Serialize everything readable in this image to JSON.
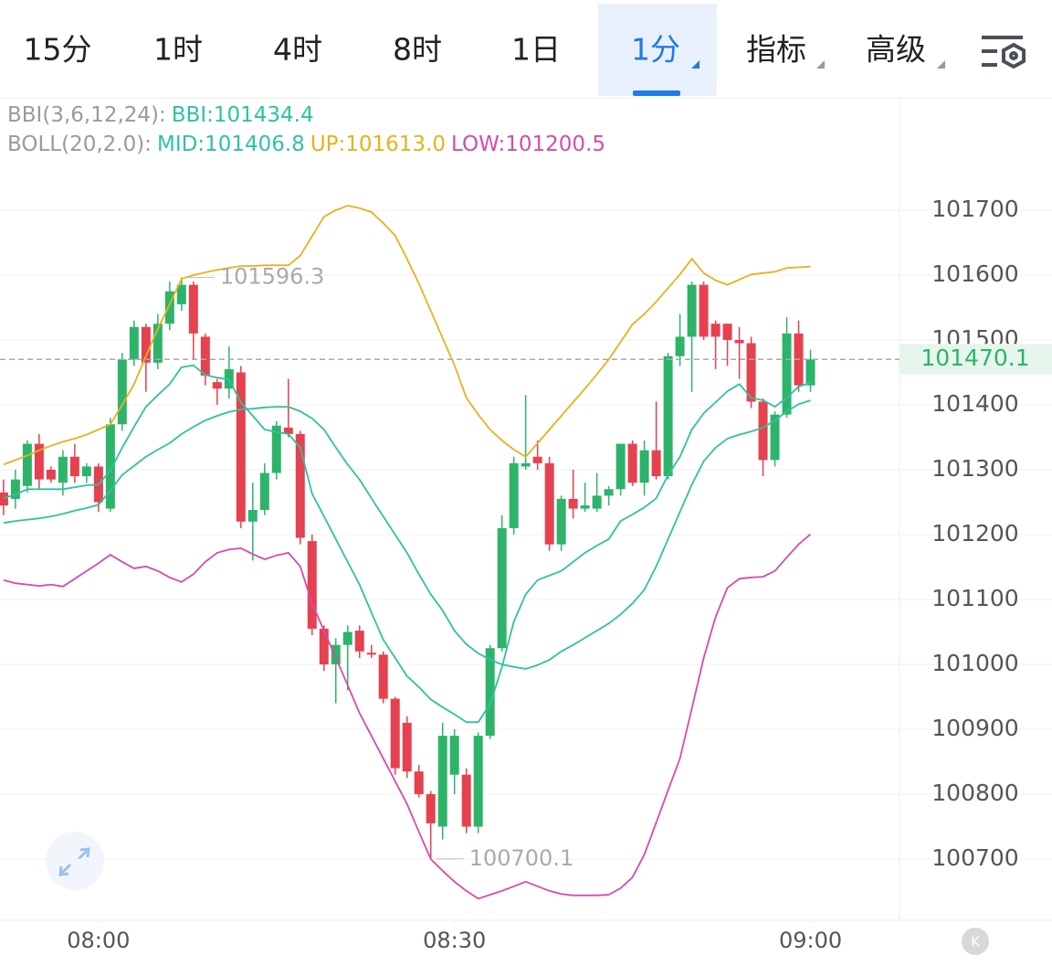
{
  "toolbar": {
    "tabs": [
      "15分",
      "1时",
      "4时",
      "8时",
      "1日",
      "1分",
      "指标",
      "高级"
    ],
    "active": 5
  },
  "chart_data": {
    "type": "candlestick",
    "legend": [
      [
        {
          "text": "BBI(3,6,12,24):",
          "color": "#9a9a9a"
        },
        {
          "text": "BBI:101434.4",
          "color": "#2fc2a0"
        }
      ],
      [
        {
          "text": "BOLL(20,2.0):",
          "color": "#9a9a9a"
        },
        {
          "text": "MID:101406.8",
          "color": "#2fc2a0"
        },
        {
          "text": "UP:101613.0",
          "color": "#e9b11c"
        },
        {
          "text": "LOW:101200.5",
          "color": "#d84aaa"
        }
      ]
    ],
    "up_color": "#2db46a",
    "down_color": "#e5414f",
    "x": [
      472,
      473,
      474,
      475,
      476,
      477,
      478,
      479,
      480,
      481,
      482,
      483,
      484,
      485,
      486,
      487,
      488,
      489,
      490,
      491,
      492,
      493,
      494,
      495,
      496,
      497,
      498,
      499,
      500,
      501,
      502,
      503,
      504,
      505,
      506,
      507,
      508,
      509,
      510,
      511,
      512,
      513,
      514,
      515,
      516,
      517,
      518,
      519,
      520,
      521,
      522,
      523,
      524,
      525,
      526,
      527,
      528,
      529,
      530,
      531,
      532,
      533,
      534,
      535,
      536,
      537,
      538,
      539,
      540
    ],
    "open": [
      101265,
      101255,
      101275,
      101340,
      101300,
      101280,
      101320,
      101290,
      101305,
      101240,
      101370,
      101470,
      101520,
      101465,
      101525,
      101555,
      101585,
      101505,
      101435,
      101425,
      101450,
      101220,
      101238,
      101295,
      101365,
      101355,
      101190,
      101055,
      101000,
      101030,
      101052,
      101018,
      101015,
      100947,
      100910,
      100835,
      100800,
      100750,
      100830,
      100830,
      100750,
      100890,
      101025,
      101210,
      101305,
      101320,
      101310,
      101185,
      101255,
      101240,
      101240,
      101260,
      101270,
      101340,
      101280,
      101330,
      101290,
      101475,
      101505,
      101585,
      101525,
      101525,
      101500,
      101495,
      101405,
      101315,
      101385,
      101510,
      101430
    ],
    "high": [
      101285,
      101300,
      101345,
      101355,
      101305,
      101330,
      101340,
      101310,
      101310,
      101380,
      101480,
      101530,
      101525,
      101540,
      101590,
      101596.3,
      101590,
      101510,
      101440,
      101490,
      101460,
      101280,
      101310,
      101375,
      101440,
      101360,
      101200,
      101060,
      101040,
      101060,
      101060,
      101030,
      101020,
      100950,
      100920,
      100845,
      100805,
      100910,
      100900,
      100840,
      100895,
      101030,
      101230,
      101320,
      101415,
      101345,
      101320,
      101260,
      101300,
      101280,
      101295,
      101275,
      101340,
      101345,
      101345,
      101405,
      101480,
      101540,
      101590,
      101590,
      101530,
      101525,
      101520,
      101505,
      101410,
      101390,
      101535,
      101530,
      101485
    ],
    "low": [
      101230,
      101240,
      101265,
      101270,
      101280,
      101260,
      101280,
      101280,
      101235,
      101235,
      101360,
      101460,
      101420,
      101455,
      101515,
      101545,
      101470,
      101430,
      101400,
      101410,
      101210,
      101160,
      101230,
      101285,
      101350,
      101185,
      101045,
      100990,
      100940,
      100960,
      101010,
      101010,
      100940,
      100830,
      100825,
      100795,
      100700.1,
      100730,
      100800,
      100740,
      100740,
      100885,
      101020,
      101200,
      101300,
      101300,
      101175,
      101175,
      101225,
      101235,
      101235,
      101245,
      101260,
      101275,
      101260,
      101285,
      101285,
      101460,
      101420,
      101500,
      101455,
      101460,
      101440,
      101395,
      101290,
      101305,
      101380,
      101420,
      101420
    ],
    "close": [
      101245,
      101285,
      101340,
      101285,
      101285,
      101320,
      101290,
      101305,
      101250,
      101370,
      101470,
      101520,
      101465,
      101525,
      101575,
      101585,
      101510,
      101445,
      101425,
      101455,
      101220,
      101238,
      101295,
      101368,
      101355,
      101195,
      101055,
      101000,
      101030,
      101050,
      101020,
      101015,
      100947,
      100840,
      100835,
      100800,
      100755,
      100890,
      100890,
      100750,
      100890,
      101025,
      101210,
      101310,
      101310,
      101310,
      101185,
      101255,
      101240,
      101245,
      101260,
      101270,
      101340,
      101280,
      101330,
      101290,
      101475,
      101505,
      101585,
      101505,
      101505,
      101500,
      101495,
      101405,
      101315,
      101385,
      101510,
      101430,
      101470.1
    ],
    "series": [
      {
        "name": "BBI",
        "color": "#2fc2a0",
        "values": [
          101256,
          101262,
          101270,
          101270,
          101270,
          101270,
          101273,
          101276,
          101277,
          101299,
          101334,
          101366,
          101397,
          101415,
          101432,
          101458,
          101461,
          101446,
          101442,
          101439,
          101404,
          101383,
          101362,
          101358,
          101355,
          101334,
          101263,
          101228,
          101193,
          101158,
          101123,
          101080,
          101038,
          101010,
          100982,
          100965,
          100946,
          100934,
          100923,
          100911,
          100911,
          100939,
          100996,
          101066,
          101108,
          101130,
          101137,
          101144,
          101158,
          101172,
          101183,
          101193,
          101221,
          101231,
          101242,
          101256,
          101292,
          101320,
          101362,
          101387,
          101404,
          101421,
          101432,
          101411,
          101407,
          101397,
          101411,
          101428,
          101434.4
        ]
      },
      {
        "name": "MID",
        "color": "#2fc2a0",
        "values": [
          101218,
          101221,
          101223,
          101225,
          101228,
          101232,
          101237,
          101241,
          101246,
          101268,
          101292,
          101306,
          101320,
          101331,
          101341,
          101355,
          101366,
          101376,
          101383,
          101389,
          101393,
          101394,
          101396,
          101397,
          101397,
          101390,
          101379,
          101362,
          101334,
          101308,
          101285,
          101256,
          101228,
          101200,
          101172,
          101139,
          101108,
          101083,
          101052,
          101031,
          101017,
          101007,
          101000,
          100996,
          100993,
          100999,
          101007,
          101020,
          101030,
          101041,
          101052,
          101063,
          101077,
          101094,
          101115,
          101151,
          101193,
          101235,
          101277,
          101313,
          101334,
          101348,
          101354,
          101359,
          101365,
          101376,
          101390,
          101401,
          101406.8
        ]
      },
      {
        "name": "UP",
        "color": "#e9b11c",
        "values": [
          101308,
          101315,
          101322,
          101330,
          101337,
          101343,
          101348,
          101354,
          101362,
          101370,
          101400,
          101432,
          101475,
          101517,
          101555,
          101594,
          101600,
          101604,
          101608,
          101611,
          101614,
          101614,
          101615,
          101615,
          101615,
          101630,
          101660,
          101690,
          101700,
          101707,
          101703,
          101697,
          101680,
          101661,
          101625,
          101587,
          101545,
          101503,
          101461,
          101411,
          101385,
          101362,
          101345,
          101331,
          101320,
          101341,
          101362,
          101383,
          101404,
          101425,
          101447,
          101470,
          101497,
          101524,
          101540,
          101559,
          101580,
          101601,
          101625,
          101603,
          101592,
          101585,
          101593,
          101601,
          101603,
          101605,
          101611,
          101612,
          101613.0
        ]
      },
      {
        "name": "LOW",
        "color": "#d84aaa",
        "values": [
          101130,
          101125,
          101123,
          101121,
          101123,
          101120,
          101132,
          101144,
          101156,
          101169,
          101158,
          101148,
          101151,
          101144,
          101134,
          101127,
          101139,
          101158,
          101172,
          101177,
          101179,
          101170,
          101162,
          101168,
          101172,
          101151,
          101094,
          101052,
          101010,
          100968,
          100925,
          100890,
          100855,
          100820,
          100785,
          100742,
          100700,
          100682,
          100665,
          100651,
          100639,
          100645,
          100651,
          100658,
          100665,
          100658,
          100651,
          100646,
          100644,
          100644,
          100644,
          100645,
          100655,
          100672,
          100707,
          100756,
          100806,
          100855,
          100932,
          101010,
          101073,
          101118,
          101132,
          101134,
          101135,
          101144,
          101165,
          101185,
          101200.5
        ]
      }
    ],
    "xlim": [
      471.7,
      547.5
    ],
    "xticks": [
      {
        "value": 480,
        "label": "08:00"
      },
      {
        "value": 510,
        "label": "08:30"
      },
      {
        "value": 540,
        "label": "09:00"
      }
    ],
    "ylim": [
      100605.6,
      101871.8
    ],
    "yticks": [
      100700,
      100800,
      100900,
      101000,
      101100,
      101200,
      101300,
      101400,
      101500,
      101600,
      101700
    ],
    "grid": true
  }
}
